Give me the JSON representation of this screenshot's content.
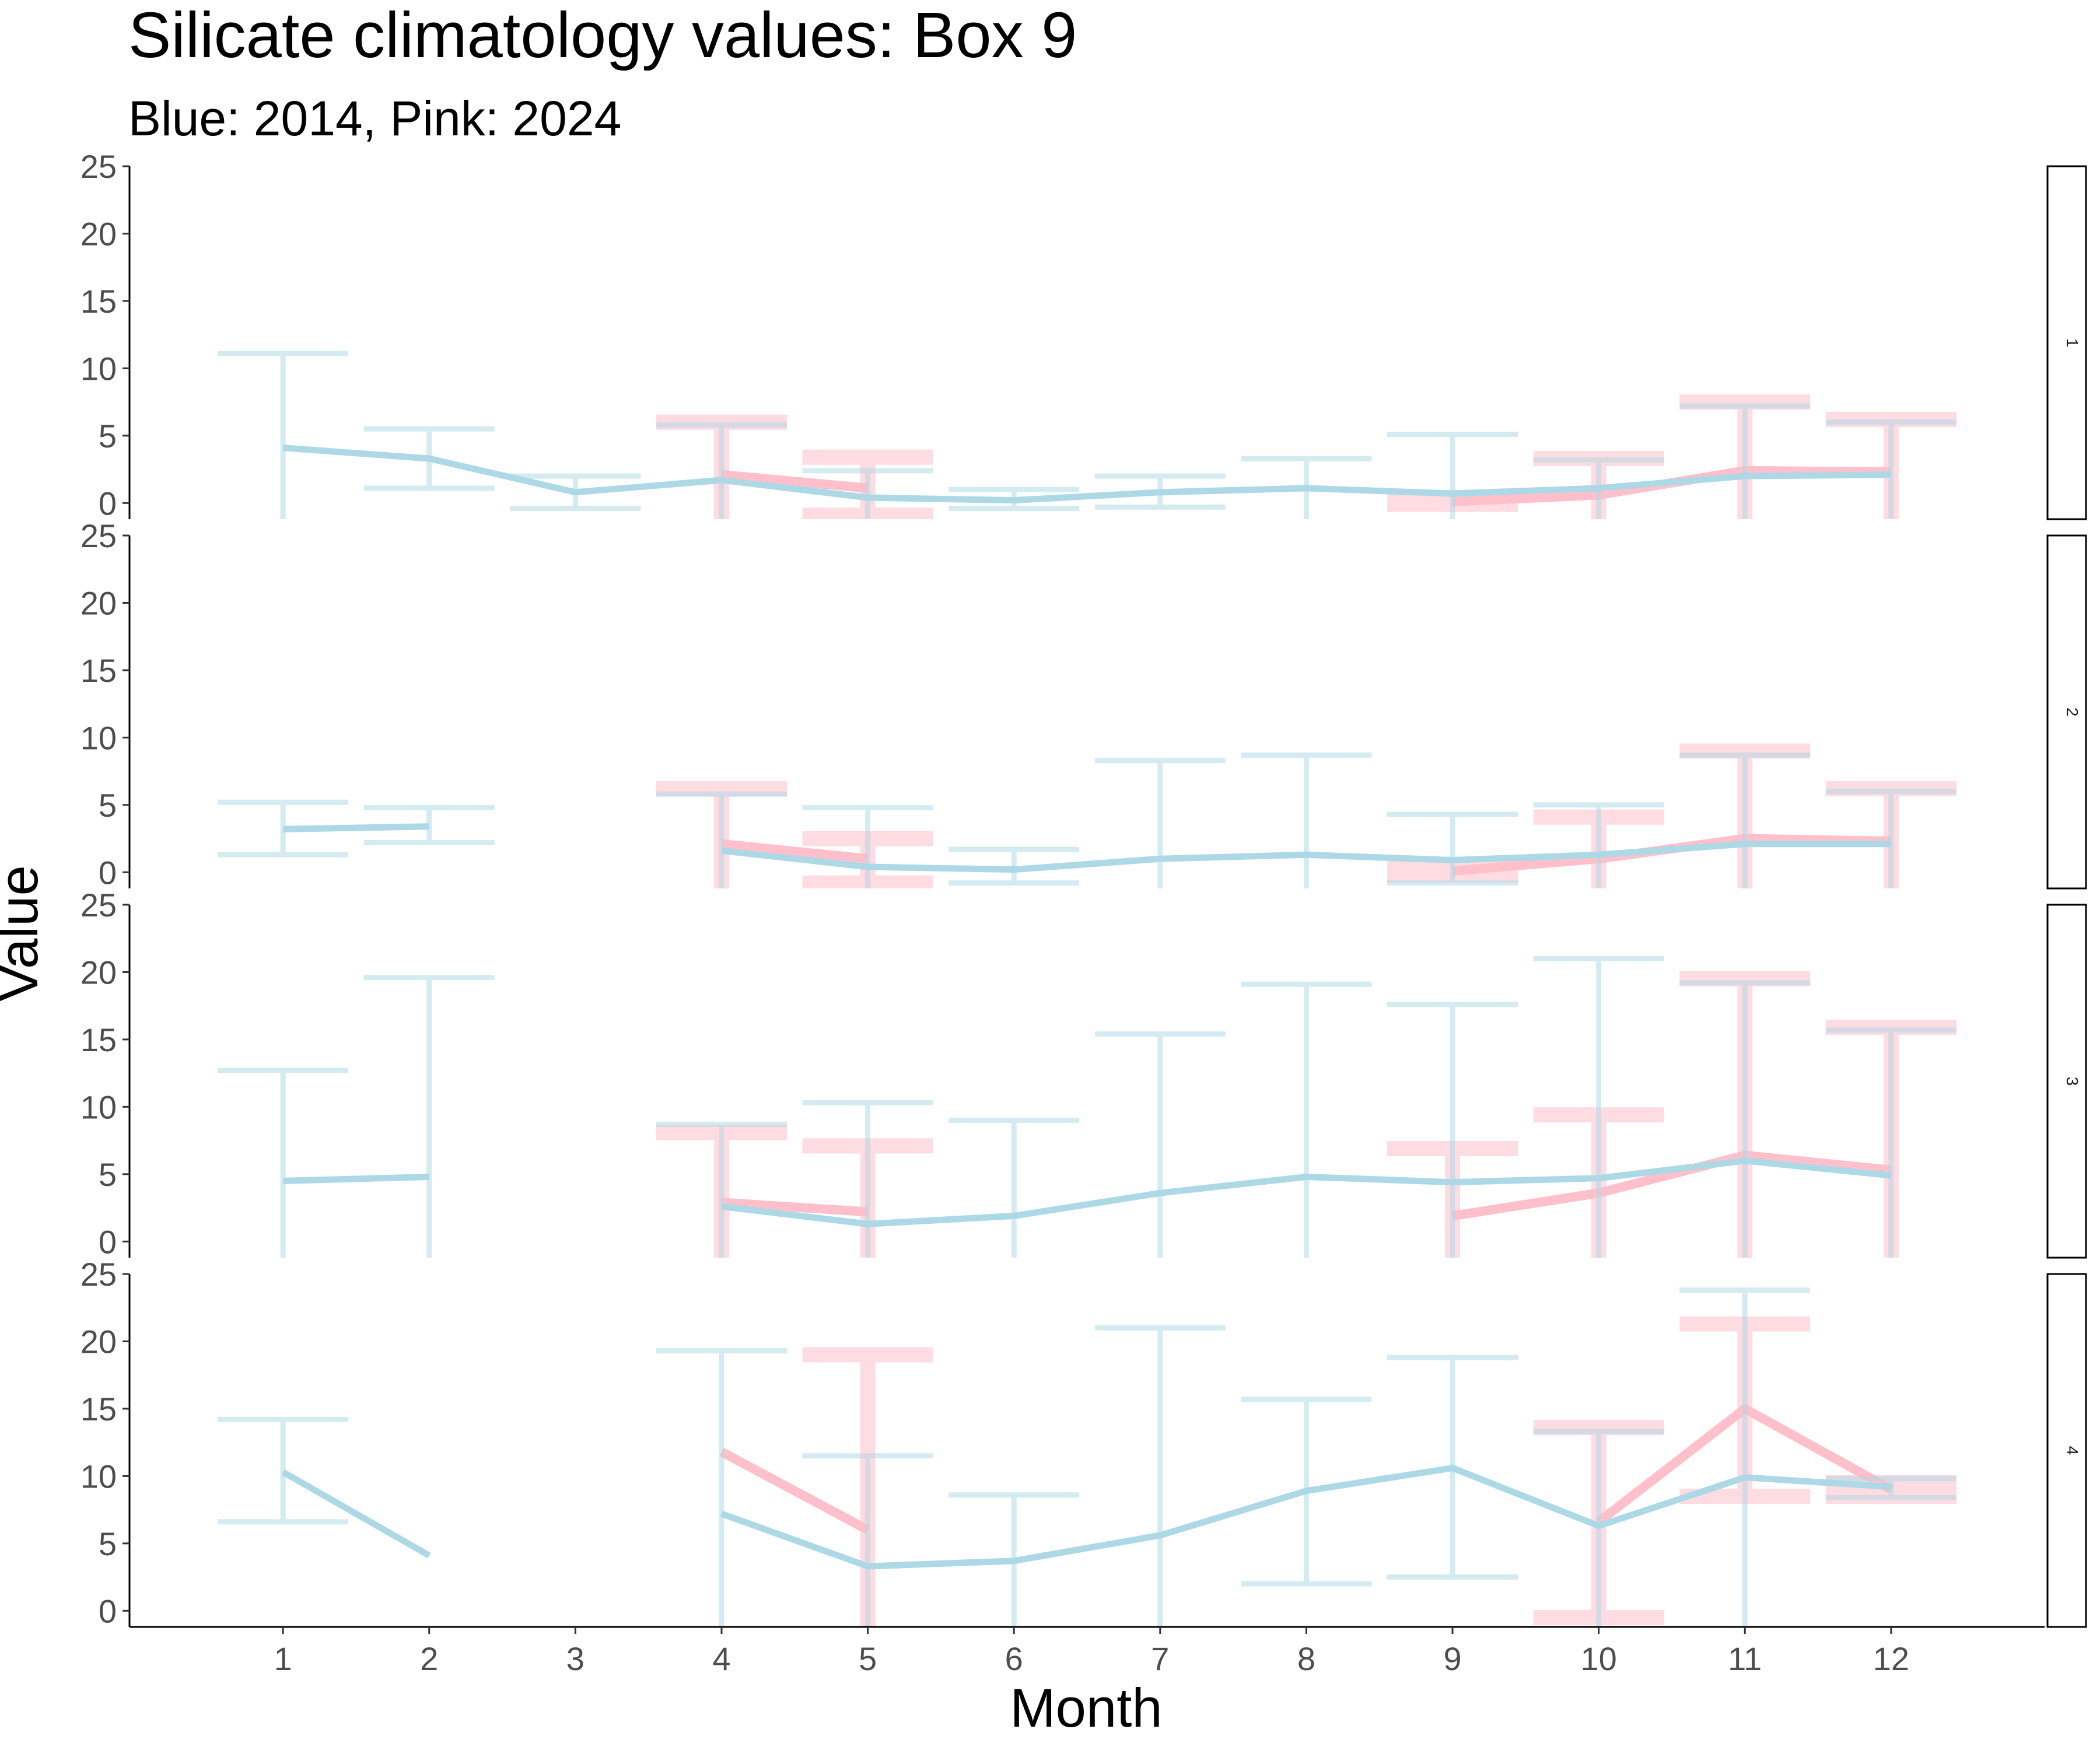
{
  "chart_data": {
    "type": "line",
    "title": "Silicate climatology values: Box 9",
    "subtitle": "Blue: 2014, Pink: 2024",
    "xlabel": "Month",
    "ylabel": "Value",
    "x": [
      1,
      2,
      3,
      4,
      5,
      6,
      7,
      8,
      9,
      10,
      11,
      12
    ],
    "xlim": [
      -0.05,
      13.05
    ],
    "ylim": [
      -1.2,
      25
    ],
    "yticks": [
      0,
      5,
      10,
      15,
      20,
      25
    ],
    "grid": false,
    "legend": "none",
    "colors": {
      "blue": "#add8e6",
      "pink": "#ffc0cb"
    },
    "panels": [
      {
        "strip_label": "1",
        "series": [
          {
            "color": "blue",
            "values": [
              4.1,
              3.3,
              0.8,
              1.7,
              0.4,
              0.2,
              0.8,
              1.1,
              0.7,
              1.1,
              2.0,
              2.1
            ],
            "err_low": [
              -1.2,
              1.1,
              -0.4,
              -1.2,
              -1.2,
              -0.4,
              -0.3,
              -1.2,
              -1.2,
              -1.2,
              -1.2,
              -1.2
            ],
            "err_high": [
              11.1,
              5.5,
              2.0,
              5.8,
              2.4,
              1.0,
              2.0,
              3.3,
              5.1,
              3.2,
              7.2,
              6.0
            ]
          },
          {
            "color": "pink",
            "values": [
              null,
              null,
              null,
              2.1,
              1.1,
              null,
              null,
              null,
              0.1,
              0.6,
              2.4,
              2.3
            ],
            "err_low": [
              null,
              null,
              null,
              -1.2,
              -0.9,
              null,
              null,
              null,
              -0.1,
              -1.2,
              -1.2,
              -1.2
            ],
            "err_high": [
              null,
              null,
              null,
              6.0,
              3.4,
              null,
              null,
              null,
              0.4,
              3.3,
              7.5,
              6.2
            ]
          }
        ]
      },
      {
        "strip_label": "2",
        "series": [
          {
            "color": "blue",
            "values": [
              3.2,
              3.4,
              null,
              1.6,
              0.4,
              0.2,
              1.0,
              1.3,
              0.9,
              1.3,
              2.1,
              2.1
            ],
            "err_low": [
              1.3,
              2.2,
              null,
              -1.2,
              -1.2,
              -0.8,
              -1.2,
              -1.2,
              -0.8,
              -1.2,
              -1.2,
              -1.2
            ],
            "err_high": [
              5.2,
              4.8,
              null,
              5.8,
              4.8,
              1.7,
              8.3,
              8.7,
              4.3,
              5.0,
              8.7,
              6.0
            ]
          },
          {
            "color": "pink",
            "values": [
              null,
              null,
              null,
              2.1,
              1.0,
              null,
              null,
              null,
              0.1,
              1.0,
              2.5,
              2.3
            ],
            "err_low": [
              null,
              null,
              null,
              -1.2,
              -0.8,
              null,
              null,
              null,
              -0.2,
              -1.2,
              -1.2,
              -1.2
            ],
            "err_high": [
              null,
              null,
              null,
              6.2,
              2.5,
              null,
              null,
              null,
              0.5,
              4.1,
              9.0,
              6.2
            ]
          }
        ]
      },
      {
        "strip_label": "3",
        "series": [
          {
            "color": "blue",
            "values": [
              4.5,
              4.8,
              null,
              2.6,
              1.3,
              1.9,
              3.6,
              4.8,
              4.4,
              4.7,
              6.0,
              4.9
            ],
            "err_low": [
              -1.2,
              -1.2,
              null,
              -1.2,
              -1.2,
              -1.2,
              -1.2,
              -1.2,
              -1.2,
              -1.2,
              -1.2,
              -1.2
            ],
            "err_high": [
              12.7,
              19.6,
              null,
              8.7,
              10.3,
              9.0,
              15.4,
              19.1,
              17.6,
              21.0,
              19.2,
              15.7
            ]
          },
          {
            "color": "pink",
            "values": [
              null,
              null,
              null,
              2.9,
              2.2,
              null,
              null,
              null,
              1.9,
              3.6,
              6.4,
              5.3
            ],
            "err_low": [
              null,
              null,
              null,
              -1.2,
              -1.2,
              null,
              null,
              null,
              -1.2,
              -1.2,
              -1.2,
              -1.2
            ],
            "err_high": [
              null,
              null,
              null,
              8.1,
              7.1,
              null,
              null,
              null,
              6.9,
              9.4,
              19.5,
              15.9
            ]
          }
        ]
      },
      {
        "strip_label": "4",
        "series": [
          {
            "color": "blue",
            "values": [
              10.3,
              4.1,
              null,
              7.2,
              3.3,
              3.7,
              5.6,
              8.9,
              10.6,
              6.3,
              9.9,
              9.2
            ],
            "err_low": [
              6.6,
              null,
              null,
              -1.2,
              -1.2,
              -1.2,
              -1.2,
              2.0,
              2.5,
              -1.2,
              -1.2,
              8.4
            ],
            "err_high": [
              14.2,
              null,
              null,
              19.3,
              11.5,
              8.6,
              21.0,
              15.7,
              18.8,
              13.3,
              23.8,
              9.8
            ]
          },
          {
            "color": "pink",
            "values": [
              null,
              null,
              null,
              11.8,
              6.0,
              null,
              null,
              null,
              null,
              6.6,
              15.0,
              9.0
            ],
            "err_low": [
              null,
              null,
              null,
              null,
              -1.2,
              null,
              null,
              null,
              null,
              -0.5,
              8.5,
              8.5
            ],
            "err_high": [
              null,
              null,
              null,
              null,
              19.0,
              null,
              null,
              null,
              null,
              13.6,
              21.3,
              9.5
            ]
          }
        ]
      }
    ]
  }
}
